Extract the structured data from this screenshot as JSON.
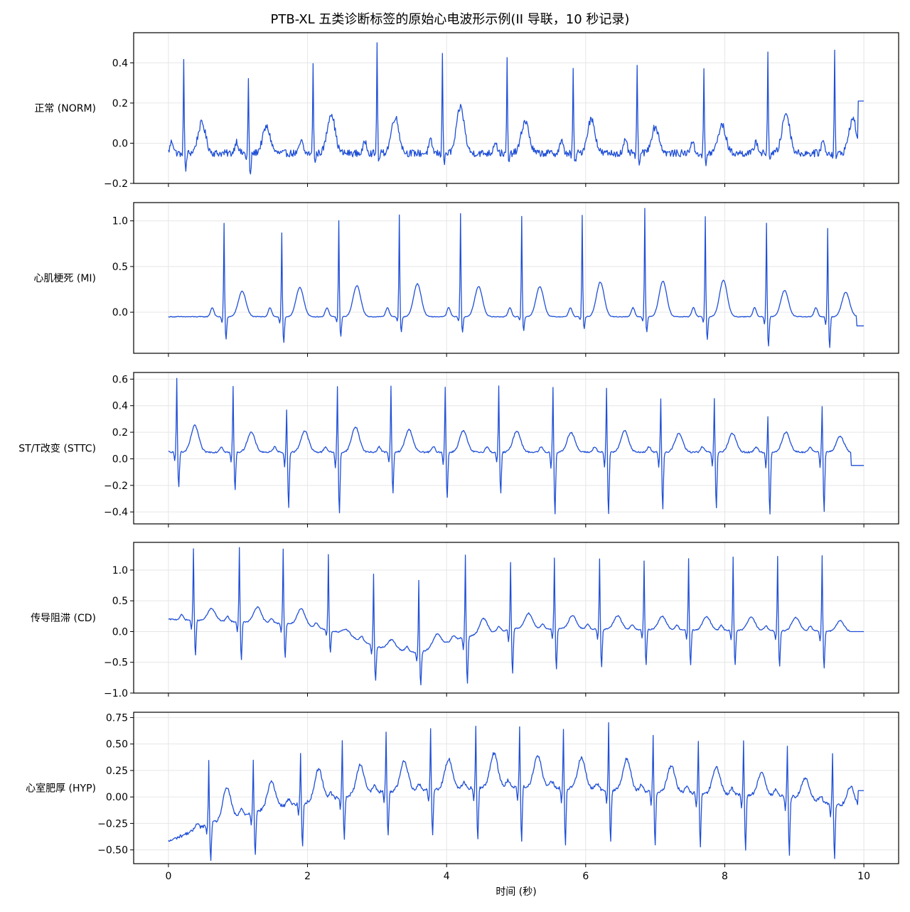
{
  "figure": {
    "title": "PTB-XL 五类诊断标签的原始心电波形示例(II 导联，10 秒记录)",
    "xlabel": "时间 (秒)",
    "line_color": "#1f4fd6",
    "grid_color": "#e6e6e6"
  },
  "chart_data": [
    {
      "type": "line",
      "ylabel": "正常 (NORM)",
      "xlim": [
        -0.5,
        10.5
      ],
      "ylim": [
        -0.2,
        0.55
      ],
      "yticks": [
        -0.2,
        0.0,
        0.2,
        0.4
      ],
      "ytick_labels": [
        "−0.2",
        "0.0",
        "0.2",
        "0.4"
      ],
      "xticks": [
        0,
        2,
        4,
        6,
        8,
        10
      ],
      "beats": [
        0.22,
        1.15,
        2.08,
        3.0,
        3.94,
        4.87,
        5.82,
        6.74,
        7.7,
        8.62,
        9.58
      ],
      "r_peaks": [
        0.42,
        0.32,
        0.41,
        0.51,
        0.46,
        0.42,
        0.37,
        0.38,
        0.37,
        0.47,
        0.47
      ],
      "s_depth": [
        -0.14,
        -0.17,
        -0.1,
        -0.09,
        -0.1,
        -0.1,
        -0.1,
        -0.1,
        -0.11,
        -0.07,
        -0.08
      ],
      "t_amp": [
        0.15,
        0.13,
        0.2,
        0.18,
        0.23,
        0.16,
        0.17,
        0.13,
        0.14,
        0.2,
        0.17
      ],
      "p_amp": 0.06,
      "baseline": -0.05,
      "end_value": 0.21,
      "noise": 0.018
    },
    {
      "type": "line",
      "ylabel": "心肌梗死 (MI)",
      "xlim": [
        -0.5,
        10.5
      ],
      "ylim": [
        -0.45,
        1.2
      ],
      "yticks": [
        0.0,
        0.5,
        1.0
      ],
      "ytick_labels": [
        "0.0",
        "0.5",
        "1.0"
      ],
      "xticks": [
        0,
        2,
        4,
        6,
        8,
        10
      ],
      "beats": [
        0.8,
        1.63,
        2.45,
        3.32,
        4.2,
        5.08,
        5.95,
        6.85,
        7.72,
        8.6,
        9.48
      ],
      "r_peaks": [
        0.98,
        0.87,
        1.01,
        1.07,
        1.08,
        1.05,
        1.06,
        1.14,
        1.05,
        0.98,
        0.92
      ],
      "s_depth": [
        -0.3,
        -0.34,
        -0.27,
        -0.22,
        -0.22,
        -0.2,
        -0.18,
        -0.22,
        -0.3,
        -0.38,
        -0.39
      ],
      "t_amp": [
        0.28,
        0.32,
        0.34,
        0.36,
        0.33,
        0.33,
        0.38,
        0.39,
        0.4,
        0.29,
        0.27
      ],
      "p_amp": 0.1,
      "baseline": -0.05,
      "end_value": -0.15,
      "noise": 0.004
    },
    {
      "type": "line",
      "ylabel": "ST/T改变 (STTC)",
      "xlim": [
        -0.5,
        10.5
      ],
      "ylim": [
        -0.49,
        0.65
      ],
      "yticks": [
        -0.4,
        -0.2,
        0.0,
        0.2,
        0.4,
        0.6
      ],
      "ytick_labels": [
        "−0.4",
        "−0.2",
        "0.0",
        "0.2",
        "0.4",
        "0.6"
      ],
      "xticks": [
        0,
        2,
        4,
        6,
        8,
        10
      ],
      "beats": [
        0.12,
        0.93,
        1.7,
        2.43,
        3.2,
        3.98,
        4.75,
        5.53,
        6.3,
        7.08,
        7.85,
        8.62,
        9.4
      ],
      "r_peaks": [
        0.61,
        0.55,
        0.37,
        0.55,
        0.55,
        0.55,
        0.55,
        0.55,
        0.54,
        0.46,
        0.46,
        0.33,
        0.4
      ],
      "s_depth": [
        -0.21,
        -0.24,
        -0.37,
        -0.42,
        -0.26,
        -0.3,
        -0.26,
        -0.42,
        -0.42,
        -0.38,
        -0.38,
        -0.43,
        -0.4
      ],
      "t_amp": [
        0.2,
        0.15,
        0.16,
        0.19,
        0.17,
        0.16,
        0.16,
        0.15,
        0.16,
        0.14,
        0.14,
        0.15,
        0.12
      ],
      "p_amp": 0.04,
      "baseline": 0.05,
      "end_value": -0.05,
      "noise": 0.006
    },
    {
      "type": "line",
      "ylabel": "传导阻滞 (CD)",
      "xlim": [
        -0.5,
        10.5
      ],
      "ylim": [
        -1.0,
        1.45
      ],
      "yticks": [
        -1.0,
        -0.5,
        0.0,
        0.5,
        1.0
      ],
      "ytick_labels": [
        "−1.0",
        "−0.5",
        "0.0",
        "0.5",
        "1.0"
      ],
      "xticks": [
        0,
        2,
        4,
        6,
        8,
        10
      ],
      "beats": [
        0.36,
        1.02,
        1.65,
        2.3,
        2.95,
        3.6,
        4.27,
        4.92,
        5.55,
        6.2,
        6.84,
        7.48,
        8.12,
        8.76,
        9.4
      ],
      "r_peaks": [
        1.35,
        1.37,
        1.36,
        1.26,
        0.95,
        0.85,
        1.25,
        1.13,
        1.2,
        1.2,
        1.16,
        1.2,
        1.22,
        1.23,
        1.24
      ],
      "s_depth": [
        -0.38,
        -0.46,
        -0.42,
        -0.33,
        -0.8,
        -0.9,
        -0.86,
        -0.7,
        -0.62,
        -0.58,
        -0.55,
        -0.55,
        -0.55,
        -0.58,
        -0.6
      ],
      "t_amp": [
        0.2,
        0.25,
        0.25,
        0.1,
        0.15,
        0.2,
        0.25,
        0.25,
        0.22,
        0.22,
        0.22,
        0.22,
        0.22,
        0.22,
        0.17
      ],
      "p_amp": 0.08,
      "baseline_points": [
        [
          0,
          0.2
        ],
        [
          1.9,
          0.12
        ],
        [
          2.4,
          0.0
        ],
        [
          3.0,
          -0.25
        ],
        [
          3.6,
          -0.35
        ],
        [
          4.2,
          -0.1
        ],
        [
          5.0,
          0.05
        ],
        [
          10.0,
          0.0
        ]
      ],
      "end_value": 0.0,
      "noise": 0.01
    },
    {
      "type": "line",
      "ylabel": "心室肥厚 (HYP)",
      "xlim": [
        -0.5,
        10.5
      ],
      "ylim": [
        -0.63,
        0.8
      ],
      "yticks": [
        -0.5,
        -0.25,
        0.0,
        0.25,
        0.5,
        0.75
      ],
      "ytick_labels": [
        "−0.50",
        "−0.25",
        "0.00",
        "0.25",
        "0.50",
        "0.75"
      ],
      "xticks": [
        0,
        2,
        4,
        6,
        8,
        10
      ],
      "xtick_labels": [
        "0",
        "2",
        "4",
        "6",
        "8",
        "10"
      ],
      "beats": [
        0.58,
        1.22,
        1.9,
        2.5,
        3.13,
        3.77,
        4.42,
        5.05,
        5.68,
        6.33,
        6.97,
        7.62,
        8.27,
        8.9,
        9.55
      ],
      "r_peaks": [
        0.35,
        0.36,
        0.42,
        0.55,
        0.62,
        0.65,
        0.67,
        0.67,
        0.65,
        0.72,
        0.6,
        0.55,
        0.54,
        0.5,
        0.42
      ],
      "s_depth": [
        -0.6,
        -0.55,
        -0.48,
        -0.4,
        -0.38,
        -0.37,
        -0.42,
        -0.42,
        -0.45,
        -0.42,
        -0.45,
        -0.48,
        -0.5,
        -0.55,
        -0.58
      ],
      "t_amp": [
        0.3,
        0.25,
        0.3,
        0.28,
        0.28,
        0.28,
        0.32,
        0.3,
        0.3,
        0.3,
        0.25,
        0.25,
        0.22,
        0.2,
        0.2
      ],
      "p_amp": 0.06,
      "baseline_points": [
        [
          0,
          -0.42
        ],
        [
          0.6,
          -0.25
        ],
        [
          1.5,
          -0.1
        ],
        [
          3.0,
          0.05
        ],
        [
          5.0,
          0.1
        ],
        [
          7.0,
          0.05
        ],
        [
          9.0,
          0.0
        ],
        [
          9.8,
          -0.1
        ]
      ],
      "end_value": 0.06,
      "noise": 0.015
    }
  ]
}
